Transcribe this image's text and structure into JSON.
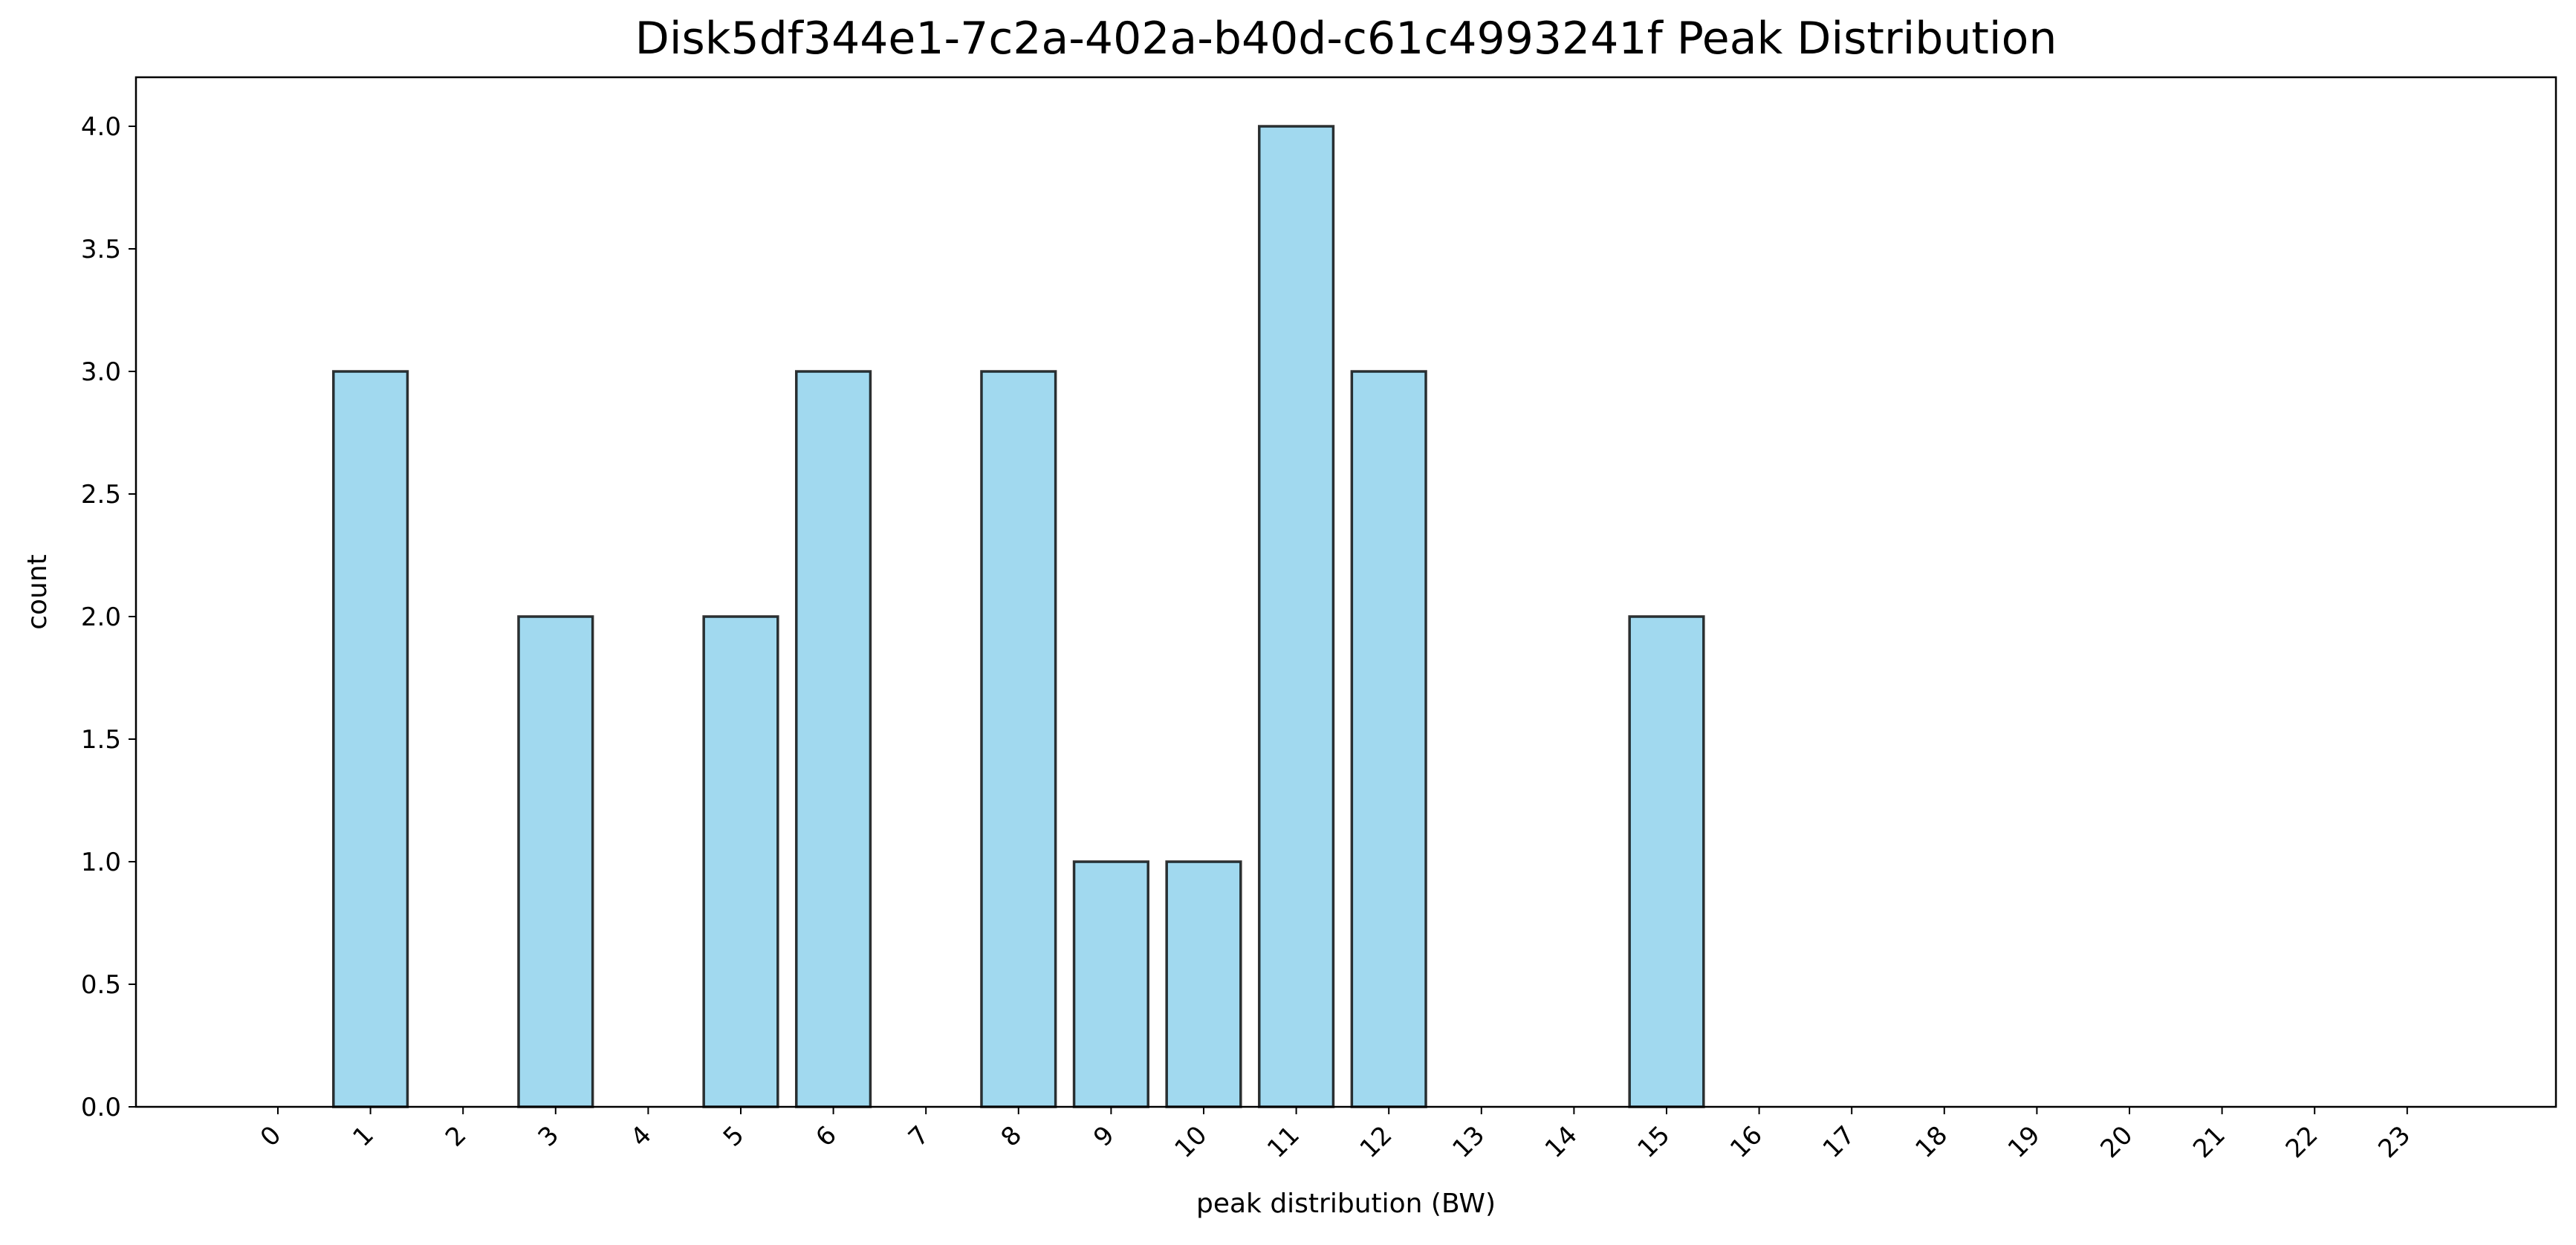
{
  "chart_data": {
    "type": "bar",
    "title": "Disk5df344e1-7c2a-402a-b40d-c61c4993241f Peak Distribution",
    "xlabel": "peak distribution (BW)",
    "ylabel": "count",
    "categories": [
      "0",
      "1",
      "2",
      "3",
      "4",
      "5",
      "6",
      "7",
      "8",
      "9",
      "10",
      "11",
      "12",
      "13",
      "14",
      "15",
      "16",
      "17",
      "18",
      "19",
      "20",
      "21",
      "22",
      "23"
    ],
    "values": [
      0,
      3,
      0,
      2,
      0,
      2,
      3,
      0,
      3,
      1,
      1,
      4,
      3,
      0,
      0,
      2,
      0,
      0,
      0,
      0,
      0,
      0,
      0,
      0
    ],
    "ylim": [
      0,
      4.2
    ],
    "yticks": [
      0.0,
      0.5,
      1.0,
      1.5,
      2.0,
      2.5,
      3.0,
      3.5,
      4.0
    ],
    "ytick_labels": [
      "0.0",
      "0.5",
      "1.0",
      "1.5",
      "2.0",
      "2.5",
      "3.0",
      "3.5",
      "4.0"
    ],
    "grid": false,
    "colors": {
      "bar_fill": "#87ceeb",
      "bar_edge": "#000000",
      "axes": "#000000"
    }
  }
}
